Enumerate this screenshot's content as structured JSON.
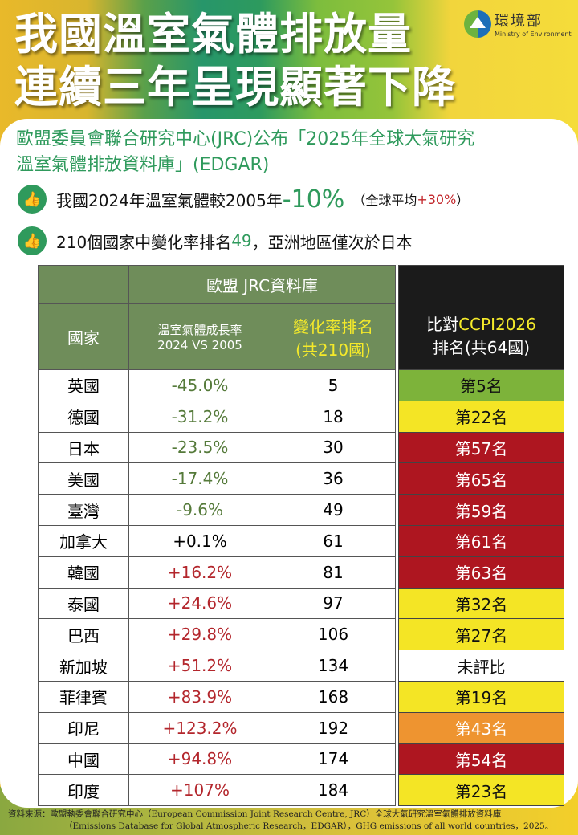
{
  "header": {
    "title_line1": "我國溫室氣體排放量",
    "title_line2": "連續三年呈現顯著下降",
    "logo_zh": "環境部",
    "logo_en": "Ministry of Environment"
  },
  "subtitle_line1": "歐盟委員會聯合研究中心(JRC)公布「2025年全球大氣研究",
  "subtitle_line2": "溫室氣體排放資料庫」(EDGAR)",
  "points": [
    {
      "icon": "thumbs-up-icon",
      "pre": "我國2024年溫室氣體較2005年",
      "value": "-10%",
      "note_pre": "（全球平均",
      "note_value": "+30%",
      "note_post": "）"
    },
    {
      "icon": "thumbs-up-icon",
      "pre": "210個國家中變化率排名",
      "value": "49",
      "post": "，亞洲地區僅次於日本"
    }
  ],
  "table": {
    "group_header": "歐盟 JRC資料庫",
    "col_country": "國家",
    "col_growth_1": "溫室氣體成長率",
    "col_growth_2": "2024 VS 2005",
    "col_rank_1": "變化率排名",
    "col_rank_2": "(共210國)",
    "ccpi_header_pre": "比對",
    "ccpi_header_hl": "CCPI2026",
    "ccpi_header_2": "排名(共64國)",
    "rows": [
      {
        "country": "英國",
        "growth": "-45.0%",
        "rank": "5",
        "ccpi": "第5名",
        "ccpi_color": "#7db33a"
      },
      {
        "country": "德國",
        "growth": "-31.2%",
        "rank": "18",
        "ccpi": "第22名",
        "ccpi_color": "#f4e525"
      },
      {
        "country": "日本",
        "growth": "-23.5%",
        "rank": "30",
        "ccpi": "第57名",
        "ccpi_color": "#ae1620"
      },
      {
        "country": "美國",
        "growth": "-17.4%",
        "rank": "36",
        "ccpi": "第65名",
        "ccpi_color": "#ae1620"
      },
      {
        "country": "臺灣",
        "growth": "-9.6%",
        "rank": "49",
        "ccpi": "第59名",
        "ccpi_color": "#ae1620"
      },
      {
        "country": "加拿大",
        "growth": "+0.1%",
        "rank": "61",
        "ccpi": "第61名",
        "ccpi_color": "#ae1620"
      },
      {
        "country": "韓國",
        "growth": "+16.2%",
        "rank": "81",
        "ccpi": "第63名",
        "ccpi_color": "#ae1620"
      },
      {
        "country": "泰國",
        "growth": "+24.6%",
        "rank": "97",
        "ccpi": "第32名",
        "ccpi_color": "#f4e525"
      },
      {
        "country": "巴西",
        "growth": "+29.8%",
        "rank": "106",
        "ccpi": "第27名",
        "ccpi_color": "#f4e525"
      },
      {
        "country": "新加坡",
        "growth": "+51.2%",
        "rank": "134",
        "ccpi": "未評比",
        "ccpi_color": "#ffffff"
      },
      {
        "country": "菲律賓",
        "growth": "+83.9%",
        "rank": "168",
        "ccpi": "第19名",
        "ccpi_color": "#f4e525"
      },
      {
        "country": "印尼",
        "growth": "+123.2%",
        "rank": "192",
        "ccpi": "第43名",
        "ccpi_color": "#ee9430"
      },
      {
        "country": "中國",
        "growth": "+94.8%",
        "rank": "174",
        "ccpi": "第54名",
        "ccpi_color": "#ae1620"
      },
      {
        "country": "印度",
        "growth": "+107%",
        "rank": "184",
        "ccpi": "第23名",
        "ccpi_color": "#f4e525"
      }
    ]
  },
  "source_line1": "資料來源：歐盟執委會聯合研究中心（European Commission Joint Research Centre, JRC）全球大氣研究溫室氣體排放資料庫",
  "source_line2": "（Emissions Database for Global Atmospheric Research，EDGAR），GHG emissions of all world countries，2025。"
}
